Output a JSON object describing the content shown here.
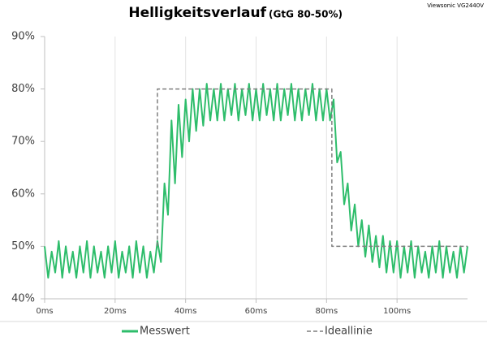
{
  "chart_data": {
    "type": "line",
    "title": "Helligkeitsverlauf",
    "subtitle": "(GtG 80-50%)",
    "annotation": "Viewsonic VG2440V",
    "xlim": [
      0,
      120
    ],
    "ylim": [
      40,
      90
    ],
    "xticks": [
      {
        "value": 0,
        "label": "0ms"
      },
      {
        "value": 20,
        "label": "20ms"
      },
      {
        "value": 40,
        "label": "40ms"
      },
      {
        "value": 60,
        "label": "60ms"
      },
      {
        "value": 80,
        "label": "80ms"
      },
      {
        "value": 100,
        "label": "100ms"
      }
    ],
    "yticks": [
      {
        "value": 40,
        "label": "40%"
      },
      {
        "value": 50,
        "label": "50%"
      },
      {
        "value": 60,
        "label": "60%"
      },
      {
        "value": 70,
        "label": "70%"
      },
      {
        "value": 80,
        "label": "80%"
      },
      {
        "value": 90,
        "label": "90%"
      }
    ],
    "grid": true,
    "series": [
      {
        "name": "Messwert",
        "color": "#2ebd6b",
        "dashed": false,
        "x": [
          0,
          1,
          2,
          3,
          4,
          5,
          6,
          7,
          8,
          9,
          10,
          11,
          12,
          13,
          14,
          15,
          16,
          17,
          18,
          19,
          20,
          21,
          22,
          23,
          24,
          25,
          26,
          27,
          28,
          29,
          30,
          31,
          32,
          33,
          34,
          35,
          36,
          37,
          38,
          39,
          40,
          41,
          42,
          43,
          44,
          45,
          46,
          47,
          48,
          49,
          50,
          51,
          52,
          53,
          54,
          55,
          56,
          57,
          58,
          59,
          60,
          61,
          62,
          63,
          64,
          65,
          66,
          67,
          68,
          69,
          70,
          71,
          72,
          73,
          74,
          75,
          76,
          77,
          78,
          79,
          80,
          81,
          82,
          83,
          84,
          85,
          86,
          87,
          88,
          89,
          90,
          91,
          92,
          93,
          94,
          95,
          96,
          97,
          98,
          99,
          100,
          101,
          102,
          103,
          104,
          105,
          106,
          107,
          108,
          109,
          110,
          111,
          112,
          113,
          114,
          115,
          116,
          117,
          118,
          119,
          120
        ],
        "values": [
          50,
          44,
          49,
          45,
          51,
          44,
          50,
          45,
          49,
          44,
          50,
          45,
          51,
          44,
          50,
          45,
          49,
          44,
          50,
          45,
          51,
          44,
          49,
          45,
          50,
          44,
          51,
          45,
          50,
          44,
          49,
          45,
          51,
          47,
          62,
          56,
          74,
          62,
          77,
          67,
          78,
          70,
          80,
          72,
          80,
          73,
          81,
          74,
          80,
          74,
          81,
          74,
          80,
          75,
          81,
          74,
          80,
          75,
          81,
          74,
          80,
          74,
          81,
          75,
          80,
          74,
          81,
          74,
          80,
          75,
          81,
          74,
          80,
          74,
          80,
          75,
          81,
          74,
          80,
          74,
          80,
          74,
          78,
          66,
          68,
          58,
          62,
          53,
          58,
          50,
          55,
          48,
          54,
          47,
          52,
          46,
          52,
          45,
          51,
          45,
          51,
          44,
          50,
          45,
          51,
          44,
          50,
          45,
          49,
          44,
          50,
          45,
          51,
          44,
          50,
          45,
          49,
          44,
          50,
          45,
          50
        ]
      },
      {
        "name": "Ideallinie",
        "color": "#7f7f7f",
        "dashed": true,
        "x": [
          32,
          32,
          81.5,
          81.5,
          120
        ],
        "values": [
          50,
          80,
          80,
          50,
          50
        ]
      }
    ]
  }
}
